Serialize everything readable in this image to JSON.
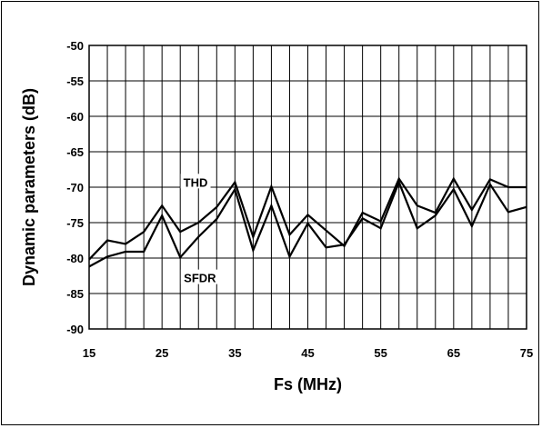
{
  "chart_data": {
    "type": "line",
    "title": "",
    "xlabel": "Fs (MHz)",
    "ylabel": "Dynamic parameters (dB)",
    "xlim": [
      15,
      75
    ],
    "ylim": [
      -90,
      -50
    ],
    "xticks": [
      15,
      25,
      35,
      45,
      55,
      65,
      75
    ],
    "yticks": [
      -50,
      -55,
      -60,
      -65,
      -70,
      -75,
      -80,
      -85,
      -90
    ],
    "grid": true,
    "legend": "none",
    "annotations": [
      {
        "text": "THD",
        "x": 29.6,
        "y": -69.4
      },
      {
        "text": "SFDR",
        "x": 30.2,
        "y": -82.9
      }
    ],
    "line_color": "#000000",
    "series": [
      {
        "x": [
          15,
          17.5,
          20,
          22.5,
          25,
          27.5,
          30,
          32.5,
          35,
          37.5,
          40,
          42.5,
          45,
          47.5,
          50,
          52.5,
          55,
          57.5,
          60,
          62.5,
          65,
          67.5,
          70,
          72.5,
          75
        ],
        "values": [
          -80.2,
          -77.5,
          -78.0,
          -76.3,
          -72.6,
          -76.3,
          -75.0,
          -72.8,
          -69.3,
          -77.0,
          -69.9,
          -76.7,
          -73.9,
          -76.1,
          -78.3,
          -73.6,
          -74.8,
          -68.8,
          -72.6,
          -73.6,
          -68.8,
          -73.2,
          -68.9,
          -70.0,
          -70.0
        ]
      },
      {
        "x": [
          15,
          17.5,
          20,
          22.5,
          25,
          27.5,
          30,
          32.5,
          35,
          37.5,
          40,
          42.5,
          45,
          47.5,
          50,
          52.5,
          55,
          57.5,
          60,
          62.5,
          65,
          67.5,
          70,
          72.5,
          75
        ],
        "values": [
          -81.2,
          -79.8,
          -79.1,
          -79.1,
          -74.0,
          -79.9,
          -77.0,
          -74.5,
          -70.3,
          -78.9,
          -72.6,
          -79.8,
          -75.1,
          -78.5,
          -78.1,
          -74.4,
          -75.8,
          -69.3,
          -75.8,
          -74.0,
          -70.3,
          -75.5,
          -69.6,
          -73.5,
          -72.8
        ]
      }
    ]
  }
}
